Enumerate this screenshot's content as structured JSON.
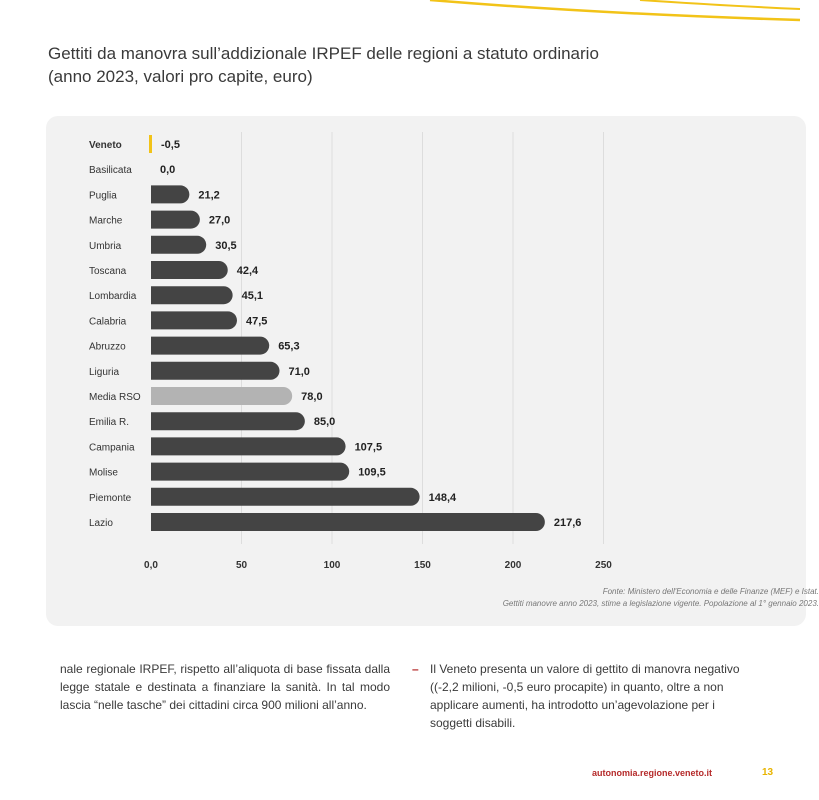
{
  "title_line1": "Gettiti da manovra sull’addizionale IRPEF delle regioni a statuto ordinario",
  "title_line2": "(anno 2023, valori pro capite, euro)",
  "chart_data": {
    "type": "bar",
    "orientation": "horizontal",
    "categories": [
      "Veneto",
      "Basilicata",
      "Puglia",
      "Marche",
      "Umbria",
      "Toscana",
      "Lombardia",
      "Calabria",
      "Abruzzo",
      "Liguria",
      "Media RSO",
      "Emilia R.",
      "Campania",
      "Molise",
      "Piemonte",
      "Lazio"
    ],
    "values": [
      -0.5,
      0.0,
      21.2,
      27.0,
      30.5,
      42.4,
      45.1,
      47.5,
      65.3,
      71.0,
      78.0,
      85.0,
      107.5,
      109.5,
      148.4,
      217.6
    ],
    "value_labels": [
      "-0,5",
      "0,0",
      "21,2",
      "27,0",
      "30,5",
      "42,4",
      "45,1",
      "47,5",
      "65,3",
      "71,0",
      "78,0",
      "85,0",
      "107,5",
      "109,5",
      "148,4",
      "217,6"
    ],
    "xticks": [
      0,
      50,
      100,
      150,
      200,
      250
    ],
    "xtick_labels": [
      "0,0",
      "50",
      "100",
      "150",
      "200",
      "250"
    ],
    "xlim": [
      0,
      250
    ],
    "grid": "vertical",
    "highlight_category": "Veneto",
    "average_category": "Media RSO",
    "colors": {
      "bar": "#444444",
      "average": "#b3b3b3",
      "highlight": "#f2c318",
      "grid": "#dddddd"
    }
  },
  "source_line1": "Fonte: Ministero dell'Economia e delle Finanze (MEF) e Istat.",
  "source_line2": "Gettiti manovre anno 2023, stime a legislazione vigente. Popolazione al 1° gennaio 2023.",
  "body_left": "nale regionale IRPEF, rispetto all’aliquota di base fissata dalla legge statale e destinata a finanziare la sanità. In tal modo lascia “nelle tasche” dei cittadini circa 900 milioni all’anno.",
  "body_right_bullet": "–",
  "body_right": "Il Veneto presenta un valore di gettito di manovra negativo ((-2,2 milioni, -0,5 euro procapite) in quanto, oltre a non applicare aumenti, ha introdotto un’agevolazione per i soggetti disabili.",
  "footer_url": "autonomia.regione.veneto.it",
  "page_number": "13"
}
